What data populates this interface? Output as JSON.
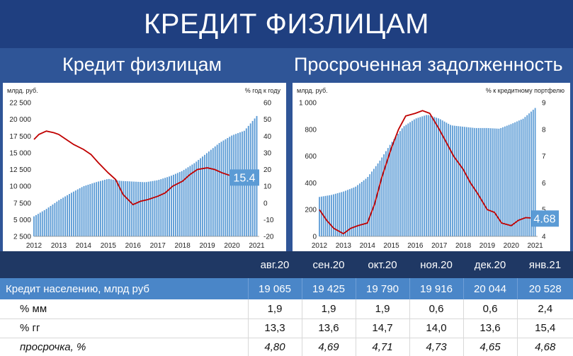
{
  "page_title": "КРЕДИТ ФИЗЛИЦАМ",
  "colors": {
    "bar": "#5b9bd5",
    "line": "#c00000",
    "callout": "#5b9bd5",
    "header": "#1f3864",
    "main_row": "#4a86c8",
    "background": "#2f5597"
  },
  "chart_data": [
    {
      "type": "bar+line",
      "title": "Кредит физлицам",
      "left_axis_unit": "млрд. руб.",
      "right_axis_unit": "% год к году",
      "x_ticks": [
        "2012",
        "2013",
        "2014",
        "2015",
        "2016",
        "2017",
        "2018",
        "2019",
        "2020",
        "2021"
      ],
      "x_range": [
        2012.0,
        2021.1
      ],
      "ylim_left": [
        2500,
        22500
      ],
      "y_ticks_left": [
        "22 500",
        "20 000",
        "17 500",
        "15 000",
        "12 500",
        "10 000",
        "7 500",
        "5 000",
        "2 500"
      ],
      "y_tick_values_left": [
        22500,
        20000,
        17500,
        15000,
        12500,
        10000,
        7500,
        5000,
        2500
      ],
      "ylim_right": [
        -20,
        60
      ],
      "y_ticks_right": [
        "60",
        "50",
        "40",
        "30",
        "20",
        "10",
        "0",
        "-10",
        "-20"
      ],
      "y_tick_values_right": [
        60,
        50,
        40,
        30,
        20,
        10,
        0,
        -10,
        -20
      ],
      "callout": "15.4",
      "bars": {
        "name": "кредит, млрд руб",
        "x": [
          2012.0,
          2012.5,
          2013.0,
          2013.5,
          2014.0,
          2014.5,
          2015.0,
          2015.5,
          2016.0,
          2016.5,
          2017.0,
          2017.5,
          2018.0,
          2018.5,
          2019.0,
          2019.5,
          2020.0,
          2020.5,
          2021.0
        ],
        "y": [
          5500,
          6600,
          7900,
          9000,
          10000,
          10600,
          11100,
          10800,
          10700,
          10600,
          10900,
          11500,
          12300,
          13500,
          15000,
          16500,
          17600,
          18300,
          20500
        ]
      },
      "line": {
        "name": "% год к году",
        "x": [
          2012.0,
          2012.2,
          2012.5,
          2012.8,
          2013.0,
          2013.3,
          2013.6,
          2014.0,
          2014.3,
          2014.6,
          2015.0,
          2015.3,
          2015.6,
          2016.0,
          2016.3,
          2016.6,
          2017.0,
          2017.3,
          2017.6,
          2018.0,
          2018.3,
          2018.6,
          2019.0,
          2019.3,
          2019.6,
          2020.0,
          2020.3,
          2020.6,
          2021.0
        ],
        "y": [
          38,
          41,
          43,
          42,
          41,
          38,
          35,
          32,
          29,
          24,
          18,
          14,
          5,
          -1,
          1,
          2,
          4,
          6,
          10,
          13,
          17,
          20,
          21,
          20,
          18,
          16,
          12,
          13,
          15.4
        ]
      }
    },
    {
      "type": "bar+line",
      "title": "Просроченная задолженность",
      "left_axis_unit": "млрд. руб.",
      "right_axis_unit": "% к кредитному портфелю",
      "x_ticks": [
        "2012",
        "2013",
        "2014",
        "2015",
        "2016",
        "2017",
        "2018",
        "2019",
        "2020",
        "2021"
      ],
      "x_range": [
        2012.0,
        2021.1
      ],
      "ylim_left": [
        0,
        1000
      ],
      "y_ticks_left": [
        "1 000",
        "800",
        "600",
        "400",
        "200",
        "0"
      ],
      "y_tick_values_left": [
        1000,
        800,
        600,
        400,
        200,
        0
      ],
      "ylim_right": [
        4,
        9
      ],
      "y_ticks_right": [
        "9",
        "8",
        "7",
        "6",
        "5",
        "4"
      ],
      "y_tick_values_right": [
        9,
        8,
        7,
        6,
        5,
        4
      ],
      "callout": "4.68",
      "bars": {
        "name": "просрочка, млрд руб",
        "x": [
          2012.0,
          2012.5,
          2013.0,
          2013.5,
          2014.0,
          2014.5,
          2015.0,
          2015.5,
          2016.0,
          2016.5,
          2017.0,
          2017.5,
          2018.0,
          2018.5,
          2019.0,
          2019.5,
          2020.0,
          2020.5,
          2021.0
        ],
        "y": [
          295,
          310,
          335,
          370,
          440,
          560,
          700,
          820,
          880,
          910,
          880,
          830,
          820,
          810,
          810,
          805,
          840,
          880,
          960
        ]
      },
      "line": {
        "name": "% к кредитному портфелю",
        "x": [
          2012.0,
          2012.3,
          2012.6,
          2013.0,
          2013.3,
          2013.6,
          2014.0,
          2014.3,
          2014.6,
          2015.0,
          2015.3,
          2015.6,
          2016.0,
          2016.3,
          2016.6,
          2017.0,
          2017.3,
          2017.6,
          2018.0,
          2018.3,
          2018.6,
          2019.0,
          2019.3,
          2019.6,
          2020.0,
          2020.3,
          2020.6,
          2021.0
        ],
        "y": [
          5.0,
          4.6,
          4.3,
          4.1,
          4.3,
          4.4,
          4.5,
          5.2,
          6.2,
          7.3,
          8.0,
          8.5,
          8.6,
          8.7,
          8.6,
          8.0,
          7.5,
          7.0,
          6.5,
          6.0,
          5.6,
          5.0,
          4.9,
          4.5,
          4.4,
          4.6,
          4.7,
          4.68
        ]
      }
    }
  ],
  "table": {
    "columns": [
      "",
      "авг.20",
      "сен.20",
      "окт.20",
      "ноя.20",
      "дек.20",
      "янв.21"
    ],
    "rows": [
      {
        "label": "Кредит населению, млрд руб",
        "values": [
          "19 065",
          "19 425",
          "19 790",
          "19 916",
          "20 044",
          "20 528"
        ]
      },
      {
        "label": "% мм",
        "values": [
          "1,9",
          "1,9",
          "1,9",
          "0,6",
          "0,6",
          "2,4"
        ]
      },
      {
        "label": "% гг",
        "values": [
          "13,3",
          "13,6",
          "14,7",
          "14,0",
          "13,6",
          "15,4"
        ]
      },
      {
        "label": "просрочка, %",
        "values": [
          "4,80",
          "4,69",
          "4,71",
          "4,73",
          "4,65",
          "4,68"
        ]
      }
    ]
  }
}
